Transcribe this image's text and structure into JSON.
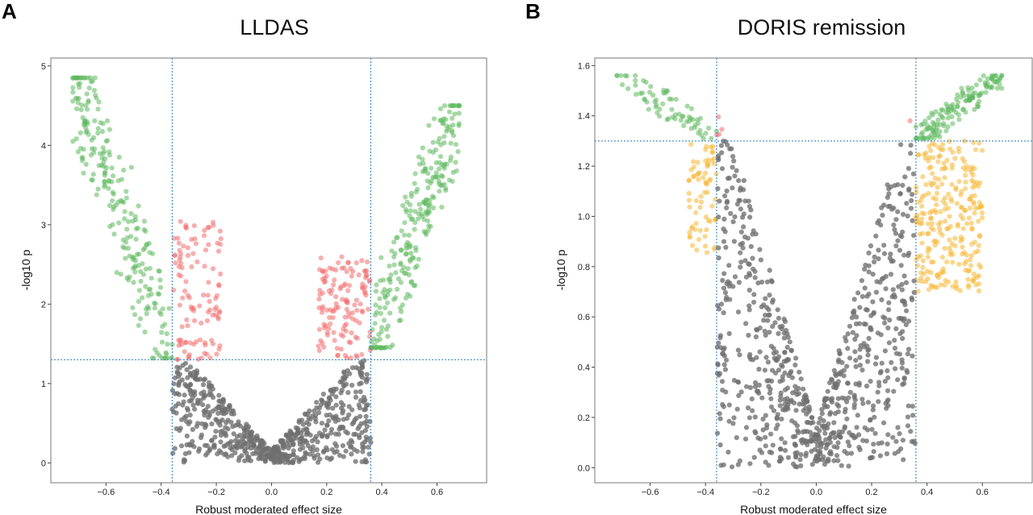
{
  "panels": [
    {
      "letter": "A",
      "title": "LLDAS",
      "xlabel": "Robust moderated effect size",
      "ylabel": "-log10 p",
      "xticks": [
        -0.6,
        -0.4,
        -0.2,
        0.0,
        0.2,
        0.4,
        0.6
      ],
      "xtick_labels": [
        "−0.6",
        "−0.4",
        "−0.2",
        "0.0",
        "0.2",
        "0.4",
        "0.6"
      ],
      "yticks": [
        0,
        1,
        2,
        3,
        4,
        5
      ],
      "ytick_labels": [
        "0",
        "1",
        "2",
        "3",
        "4",
        "5"
      ]
    },
    {
      "letter": "B",
      "title": "DORIS remission",
      "xlabel": "Robust moderated effect size",
      "ylabel": "-log10 p",
      "xticks": [
        -0.6,
        -0.4,
        -0.2,
        0.0,
        0.2,
        0.4,
        0.6
      ],
      "xtick_labels": [
        "−0.6",
        "−0.4",
        "−0.2",
        "0.0",
        "0.2",
        "0.4",
        "0.6"
      ],
      "yticks": [
        0.0,
        0.2,
        0.4,
        0.6,
        0.8,
        1.0,
        1.2,
        1.4,
        1.6
      ],
      "ytick_labels": [
        "0.0",
        "0.2",
        "0.4",
        "0.6",
        "0.8",
        "1.0",
        "1.2",
        "1.4",
        "1.6"
      ]
    }
  ],
  "chart_data": [
    {
      "type": "scatter",
      "title": "LLDAS",
      "xlabel": "Robust moderated effect size",
      "ylabel": "-log10 p",
      "xlim": [
        -0.8,
        0.78
      ],
      "ylim": [
        -0.25,
        5.1
      ],
      "grid": false,
      "thresholds": {
        "x": [
          -0.36,
          0.36
        ],
        "y": 1.3
      },
      "colors": {
        "significant_large_effect": "#5cb85c",
        "significant_small_effect": "#f26b6b",
        "not_significant": "#707070"
      },
      "clusters": [
        {
          "category": "significant_large_effect",
          "x_range": [
            -0.72,
            -0.36
          ],
          "y_range": [
            1.32,
            4.85
          ],
          "shape": "v_left",
          "count": 240
        },
        {
          "category": "significant_large_effect",
          "x_range": [
            0.36,
            0.68
          ],
          "y_range": [
            1.45,
            4.5
          ],
          "shape": "v_right",
          "count": 260
        },
        {
          "category": "significant_small_effect",
          "x_range": [
            -0.36,
            -0.18
          ],
          "y_range": [
            1.3,
            3.05
          ],
          "shape": "band",
          "count": 110
        },
        {
          "category": "significant_small_effect",
          "x_range": [
            0.17,
            0.36
          ],
          "y_range": [
            1.3,
            2.6
          ],
          "shape": "band",
          "count": 130
        },
        {
          "category": "not_significant",
          "x_range": [
            -0.36,
            0.36
          ],
          "y_range": [
            0.0,
            1.3
          ],
          "shape": "v_center",
          "count": 650
        }
      ]
    },
    {
      "type": "scatter",
      "title": "DORIS remission",
      "xlabel": "Robust moderated effect size",
      "ylabel": "-log10 p",
      "xlim": [
        -0.8,
        0.78
      ],
      "ylim": [
        -0.06,
        1.63
      ],
      "grid": false,
      "thresholds": {
        "x": [
          -0.36,
          0.36
        ],
        "y": 1.3
      },
      "colors": {
        "significant_large_effect": "#5cb85c",
        "significant_small_effect": "#f26b6b",
        "large_effect_not_significant": "#f5b731",
        "not_significant": "#707070"
      },
      "clusters": [
        {
          "category": "significant_large_effect",
          "x_range": [
            -0.72,
            -0.36
          ],
          "y_range": [
            1.31,
            1.56
          ],
          "shape": "v_left",
          "count": 70
        },
        {
          "category": "significant_large_effect",
          "x_range": [
            0.36,
            0.67
          ],
          "y_range": [
            1.31,
            1.56
          ],
          "shape": "v_right",
          "count": 140
        },
        {
          "category": "significant_small_effect",
          "x_range": [
            -0.36,
            -0.34
          ],
          "y_range": [
            1.32,
            1.42
          ],
          "shape": "band",
          "count": 4
        },
        {
          "category": "significant_small_effect",
          "x_range": [
            0.33,
            0.34
          ],
          "y_range": [
            1.38,
            1.39
          ],
          "shape": "band",
          "count": 1
        },
        {
          "category": "large_effect_not_significant",
          "x_range": [
            -0.46,
            -0.36
          ],
          "y_range": [
            0.85,
            1.3
          ],
          "shape": "band",
          "count": 70
        },
        {
          "category": "large_effect_not_significant",
          "x_range": [
            0.36,
            0.6
          ],
          "y_range": [
            0.7,
            1.3
          ],
          "shape": "band",
          "count": 260
        },
        {
          "category": "not_significant",
          "x_range": [
            -0.36,
            0.36
          ],
          "y_range": [
            0.0,
            1.3
          ],
          "shape": "v_center",
          "count": 800
        }
      ]
    }
  ]
}
